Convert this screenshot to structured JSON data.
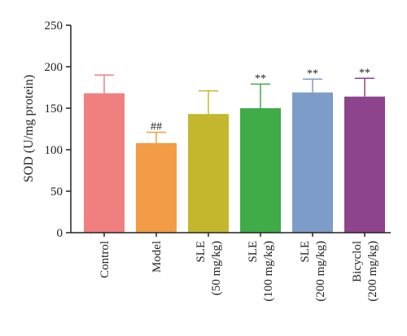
{
  "chart_data": {
    "type": "bar",
    "ylabel": "SOD (U/mg protein)",
    "ylim": [
      0,
      250
    ],
    "yticks": [
      "0",
      "50",
      "100",
      "150",
      "200",
      "250"
    ],
    "grid": false,
    "categories": [
      {
        "line1": "Control",
        "line2": ""
      },
      {
        "line1": "Model",
        "line2": ""
      },
      {
        "line1": "SLE",
        "line2": "(50 mg/kg)"
      },
      {
        "line1": "SLE",
        "line2": "(100 mg/kg)"
      },
      {
        "line1": "SLE",
        "line2": "(200 mg/kg)"
      },
      {
        "line1": "Bicyclol",
        "line2": "(200 mg/kg)"
      }
    ],
    "values": [
      168,
      108,
      143,
      150,
      169,
      164
    ],
    "errors": [
      22,
      13,
      28,
      29,
      16,
      22
    ],
    "annotations": [
      "",
      "##",
      "",
      "**",
      "**",
      "**"
    ],
    "colors": [
      "#f07f7f",
      "#f39c45",
      "#c3b72e",
      "#3fac47",
      "#7d9cc8",
      "#8d448c"
    ]
  }
}
